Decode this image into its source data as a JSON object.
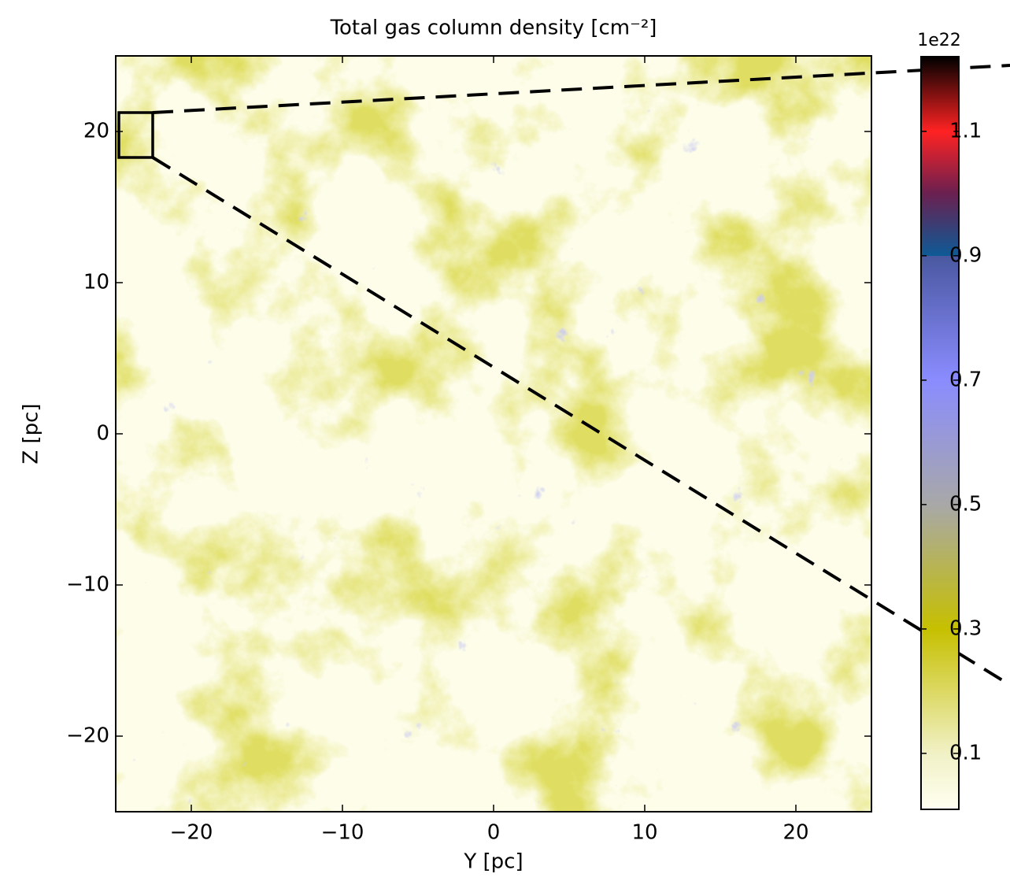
{
  "chart_data": {
    "type": "heatmap",
    "title": "Total gas column density [cm⁻²]",
    "x_label": "Y [pc]",
    "y_label": "Z [pc]",
    "xlim": [
      -25,
      25
    ],
    "ylim": [
      -25,
      25
    ],
    "xticks": [
      {
        "value": -20,
        "label": "−20"
      },
      {
        "value": -10,
        "label": "−10"
      },
      0,
      10,
      20
    ],
    "yticks": [
      {
        "value": -20,
        "label": "−20"
      },
      {
        "value": -10,
        "label": "−10"
      },
      0,
      10,
      20
    ],
    "colorbar": {
      "offset_label": "1e22",
      "clim": [
        0.01,
        1.22
      ],
      "ticks": [
        0.1,
        0.3,
        0.5,
        0.7,
        0.9,
        1.1
      ],
      "colormap": [
        {
          "value": 0.01,
          "color": "#fffff2"
        },
        {
          "value": 0.1,
          "color": "#f1f1c6"
        },
        {
          "value": 0.3,
          "color": "#c6c000"
        },
        {
          "value": 0.5,
          "color": "#a8a8a8"
        },
        {
          "value": 0.7,
          "color": "#8a8cff"
        },
        {
          "value": 0.9,
          "color": "#4a58a0"
        },
        {
          "value": 0.9,
          "color": "#0e5a96"
        },
        {
          "value": 1.0,
          "color": "#6a2050"
        },
        {
          "value": 1.1,
          "color": "#ff2222"
        },
        {
          "value": 1.22,
          "color": "#000000"
        }
      ]
    }
  }
}
